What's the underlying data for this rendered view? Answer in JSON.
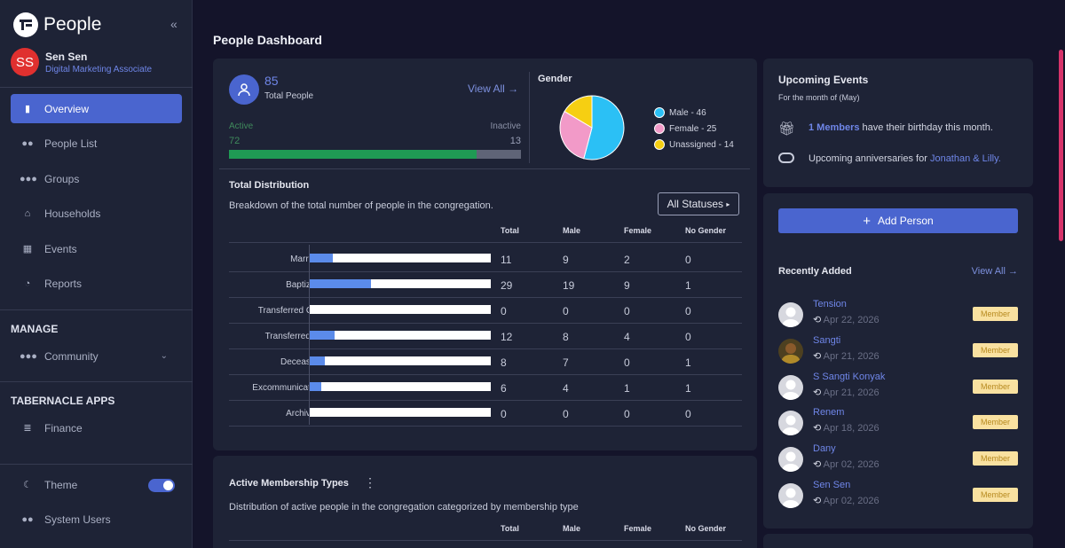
{
  "app": {
    "name": "People"
  },
  "user": {
    "initials": "SS",
    "name": "Sen Sen",
    "role": "Digital Marketing Associate"
  },
  "nav": {
    "items": [
      {
        "label": "Overview"
      },
      {
        "label": "People List"
      },
      {
        "label": "Groups"
      },
      {
        "label": "Households"
      },
      {
        "label": "Events"
      },
      {
        "label": "Reports"
      }
    ],
    "manage_title": "MANAGE",
    "community": "Community",
    "apps_title": "TABERNACLE APPS",
    "finance": "Finance",
    "theme": "Theme",
    "theme_on": true,
    "system_users": "System Users"
  },
  "page": {
    "title": "People Dashboard"
  },
  "stats": {
    "total": "85",
    "total_label": "Total People",
    "view_all": "View All",
    "active_label": "Active",
    "active": 72,
    "inactive_label": "Inactive",
    "inactive": 13
  },
  "gender": {
    "title": "Gender",
    "legend": [
      "Male - 46",
      "Female - 25",
      "Unassigned - 14"
    ],
    "values": [
      46,
      25,
      14
    ],
    "colors": [
      "#2bc0f5",
      "#f29ac8",
      "#f6cf12"
    ]
  },
  "distribution": {
    "title": "Total Distribution",
    "subtitle": "Breakdown of the total number of people in the congregation.",
    "filter": "All Statuses",
    "headers": [
      "Total",
      "Male",
      "Female",
      "No Gender"
    ],
    "rows": [
      {
        "label": "Married",
        "total": "11",
        "male": "9",
        "female": "2",
        "none": "0",
        "fraction": 0.13
      },
      {
        "label": "Baptized",
        "total": "29",
        "male": "19",
        "female": "9",
        "none": "1",
        "fraction": 0.34
      },
      {
        "label": "Transferred Out",
        "total": "0",
        "male": "0",
        "female": "0",
        "none": "0",
        "fraction": 0
      },
      {
        "label": "Transferred In",
        "total": "12",
        "male": "8",
        "female": "4",
        "none": "0",
        "fraction": 0.14
      },
      {
        "label": "Deceased",
        "total": "8",
        "male": "7",
        "female": "0",
        "none": "1",
        "fraction": 0.09
      },
      {
        "label": "Excommunicated",
        "total": "6",
        "male": "4",
        "female": "1",
        "none": "1",
        "fraction": 0.07
      },
      {
        "label": "Archived",
        "total": "0",
        "male": "0",
        "female": "0",
        "none": "0",
        "fraction": 0
      }
    ]
  },
  "membership": {
    "title": "Active Membership Types",
    "subtitle": "Distribution of active people in the congregation categorized by membership type",
    "headers": [
      "Total",
      "Male",
      "Female",
      "No Gender"
    ]
  },
  "events": {
    "title": "Upcoming Events",
    "subtitle": "For the month of (May)",
    "birthday_link": "1 Members",
    "birthday_text": " have their birthday this month.",
    "anniv_text": "Upcoming anniversaries for ",
    "anniv_link": "Jonathan & Lilly."
  },
  "people": {
    "add_label": "Add Person",
    "recent_title": "Recently Added",
    "view_all": "View All",
    "list": [
      {
        "name": "Tension",
        "date": "Apr 22, 2026",
        "badge": "Member",
        "photo": false
      },
      {
        "name": "Sangti",
        "date": "Apr 21, 2026",
        "badge": "Member",
        "photo": true
      },
      {
        "name": "S Sangti Konyak",
        "date": "Apr 21, 2026",
        "badge": "Member",
        "photo": false
      },
      {
        "name": "Renem",
        "date": "Apr 18, 2026",
        "badge": "Member",
        "photo": false
      },
      {
        "name": "Dany",
        "date": "Apr 02, 2026",
        "badge": "Member",
        "photo": false
      },
      {
        "name": "Sen Sen",
        "date": "Apr 02, 2026",
        "badge": "Member",
        "photo": false
      }
    ]
  }
}
